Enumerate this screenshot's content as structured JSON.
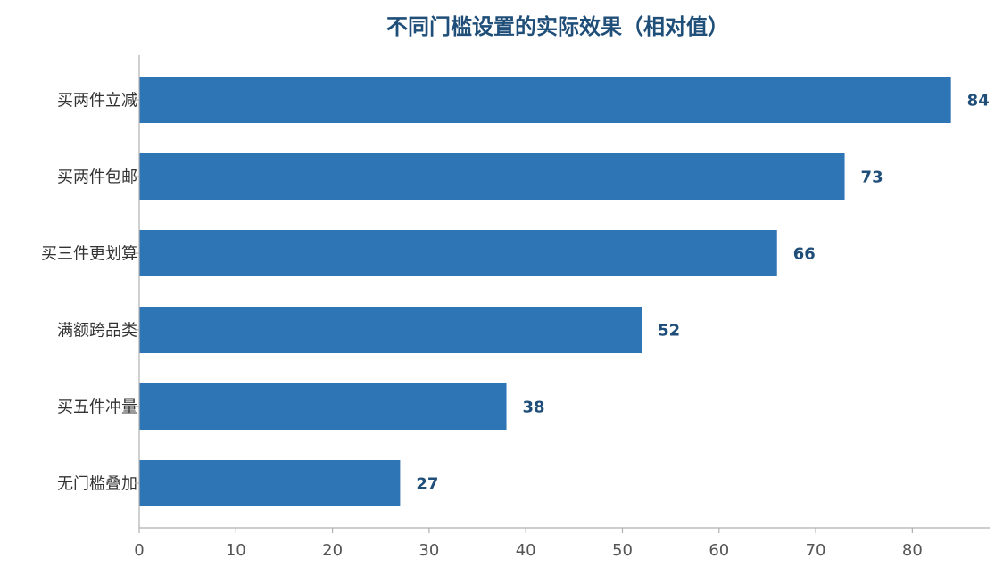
{
  "chart_data": {
    "type": "bar",
    "orientation": "horizontal",
    "title": "不同门槛设置的实际效果（相对值）",
    "categories": [
      "买两件立减",
      "买两件包邮",
      "买三件更划算",
      "满额跨品类",
      "买五件冲量",
      "无门槛叠加"
    ],
    "values": [
      84,
      73,
      66,
      52,
      38,
      27
    ],
    "xlabel": "",
    "ylabel": "",
    "xlim": [
      0,
      88
    ],
    "xticks": [
      0,
      10,
      20,
      30,
      40,
      50,
      60,
      70,
      80
    ],
    "grid": false,
    "legend": "none",
    "bar_color": "#2e75b6",
    "label_color": "#1f4e79"
  }
}
